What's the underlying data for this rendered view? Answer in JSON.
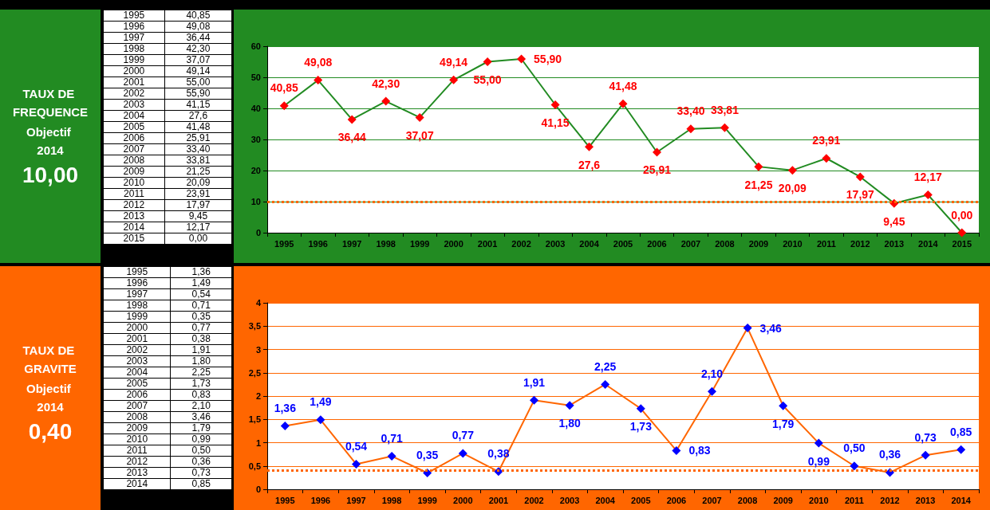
{
  "chart_data": [
    {
      "type": "line",
      "categories": [
        "1995",
        "1996",
        "1997",
        "1998",
        "1999",
        "2000",
        "2001",
        "2002",
        "2003",
        "2004",
        "2005",
        "2006",
        "2007",
        "2008",
        "2009",
        "2010",
        "2011",
        "2012",
        "2013",
        "2014",
        "2015"
      ],
      "series": [
        {
          "color": "#228b22",
          "colors": [
            "#ff0000",
            "#ff0000",
            "#ff0000",
            "#ff0000",
            "#ff0000",
            "#ff0000",
            "#ff0000",
            "#ff0000",
            "#ff0000",
            "#ff0000",
            "#ff0000",
            "#ff0000",
            "#ff0000",
            "#ff0000",
            "#ff0000",
            "#ff0000",
            "#ff0000",
            "#ff0000",
            "#ff0000",
            "#ff0000",
            "#ff0000"
          ],
          "values": [
            40.85,
            49.08,
            36.44,
            42.3,
            37.07,
            49.14,
            55.0,
            55.9,
            41.15,
            27.6,
            41.48,
            25.91,
            33.4,
            33.81,
            21.25,
            20.09,
            23.91,
            17.97,
            9.45,
            12.17,
            0.0
          ],
          "value_labels": [
            "40,85",
            "49,08",
            "36,44",
            "42,30",
            "37,07",
            "49,14",
            "55,00",
            "55,90",
            "41,15",
            "27,6",
            "41,48",
            "25,91",
            "33,40",
            "33,81",
            "21,25",
            "20,09",
            "23,91",
            "17,97",
            "9,45",
            "12,17",
            "0,00"
          ]
        }
      ],
      "ylim": [
        0,
        60
      ],
      "yticks": [
        0,
        10,
        20,
        30,
        40,
        50,
        60
      ],
      "grid": "y",
      "marker": "diamond",
      "annotations": [
        "TAUX DE FREQUENCE",
        "Objectif 2014",
        "10,00"
      ],
      "ref_lines": [
        {
          "axis": "y",
          "value": 10,
          "color": "#ff6600",
          "line_style": "dotted"
        }
      ]
    },
    {
      "type": "line",
      "categories": [
        "1995",
        "1996",
        "1997",
        "1998",
        "1999",
        "2000",
        "2001",
        "2002",
        "2003",
        "2004",
        "2005",
        "2006",
        "2007",
        "2008",
        "2009",
        "2010",
        "2011",
        "2012",
        "2013",
        "2014"
      ],
      "series": [
        {
          "color": "#ff6600",
          "colors": [
            "#0000ff",
            "#0000ff",
            "#0000ff",
            "#0000ff",
            "#0000ff",
            "#0000ff",
            "#0000ff",
            "#0000ff",
            "#0000ff",
            "#0000ff",
            "#0000ff",
            "#0000ff",
            "#0000ff",
            "#0000ff",
            "#0000ff",
            "#0000ff",
            "#0000ff",
            "#0000ff",
            "#0000ff",
            "#0000ff"
          ],
          "values": [
            1.36,
            1.49,
            0.54,
            0.71,
            0.35,
            0.77,
            0.38,
            1.91,
            1.8,
            2.25,
            1.73,
            0.83,
            2.1,
            3.46,
            1.79,
            0.99,
            0.5,
            0.36,
            0.73,
            0.85
          ],
          "value_labels": [
            "1,36",
            "1,49",
            "0,54",
            "0,71",
            "0,35",
            "0,77",
            "0,38",
            "1,91",
            "1,80",
            "2,25",
            "1,73",
            "0,83",
            "2,10",
            "3,46",
            "1,79",
            "0,99",
            "0,50",
            "0,36",
            "0,73",
            "0,85"
          ]
        }
      ],
      "ylim": [
        0,
        4
      ],
      "yticks": [
        0,
        {
          "value": 0.5,
          "label": "0,5"
        },
        1,
        {
          "value": 1.5,
          "label": "1,5"
        },
        2,
        {
          "value": 2.5,
          "label": "2,5"
        },
        3,
        {
          "value": 3.5,
          "label": "3,5"
        },
        4
      ],
      "grid": "y",
      "marker": "diamond",
      "annotations": [
        "TAUX DE GRAVITE",
        "Objectif 2014",
        "0,40"
      ],
      "ref_lines": [
        {
          "axis": "y",
          "value": 0.4,
          "color": "#ff6600",
          "line_style": "dotted"
        }
      ]
    }
  ]
}
